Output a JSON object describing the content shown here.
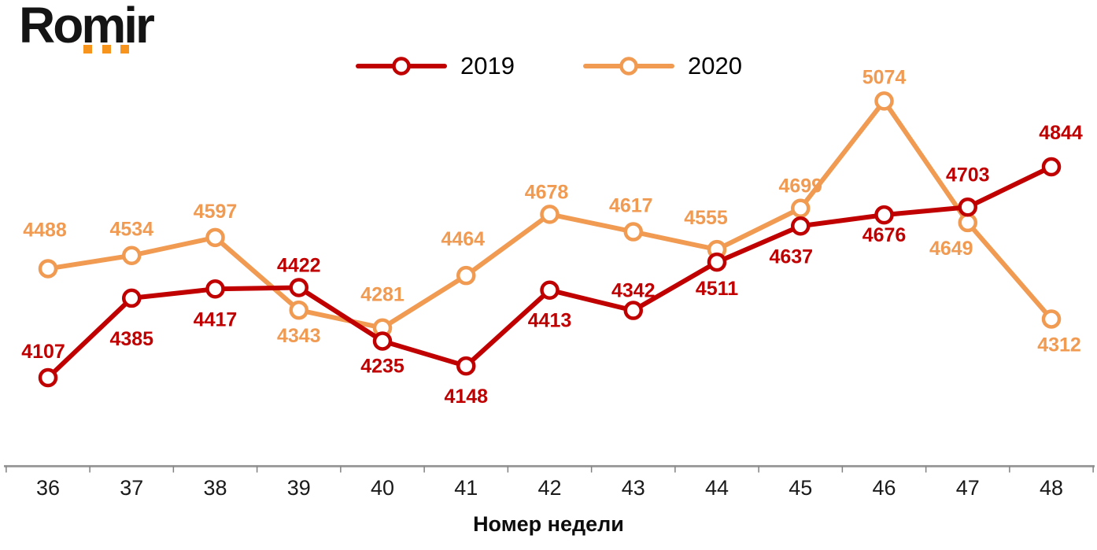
{
  "logo": {
    "text": "Romir",
    "accent_color": "#F7941E"
  },
  "legend": {
    "position": "top",
    "items": [
      {
        "label": "2019",
        "color": "#C00000"
      },
      {
        "label": "2020",
        "color": "#F09A52"
      }
    ]
  },
  "chart_data": {
    "type": "line",
    "title": "",
    "xlabel": "Номер недели",
    "ylabel": "",
    "categories": [
      "36",
      "37",
      "38",
      "39",
      "40",
      "41",
      "42",
      "43",
      "44",
      "45",
      "46",
      "47",
      "48"
    ],
    "ylim": [
      4000,
      5200
    ],
    "grid": false,
    "legend_position": "top",
    "axis_color": "#9d9d9d",
    "tick_color": "#808080",
    "tick_label_color": "#1a1a1a",
    "series": [
      {
        "name": "2019",
        "color": "#C00000",
        "values": [
          4107,
          4385,
          4417,
          4422,
          4235,
          4148,
          4413,
          4342,
          4511,
          4637,
          4676,
          4703,
          4844
        ],
        "label_positions": [
          "above",
          "below",
          "below",
          "above",
          "below",
          "below",
          "below",
          "above",
          "below",
          "below",
          "below",
          "above",
          "above"
        ],
        "label_dx": [
          -6,
          0,
          0,
          0,
          0,
          0,
          0,
          0,
          0,
          -12,
          0,
          0,
          12
        ],
        "label_dy": [
          0,
          13,
          0,
          5,
          -7,
          0,
          0,
          8,
          -5,
          0,
          -13,
          -8,
          -10
        ]
      },
      {
        "name": "2020",
        "color": "#F09A52",
        "values": [
          4488,
          4534,
          4597,
          4343,
          4281,
          4464,
          4678,
          4617,
          4555,
          4699,
          5074,
          4649,
          4312
        ],
        "label_positions": [
          "above",
          "above",
          "above",
          "below",
          "above",
          "above",
          "above",
          "above",
          "above",
          "above",
          "above",
          "below",
          "below"
        ],
        "label_dx": [
          -4,
          0,
          0,
          0,
          0,
          -4,
          -4,
          -3,
          -14,
          0,
          0,
          -21,
          10
        ],
        "label_dy": [
          -16,
          0,
          0,
          -6,
          -9,
          -13,
          5,
          0,
          -7,
          5,
          3,
          -6,
          -6
        ]
      }
    ]
  }
}
